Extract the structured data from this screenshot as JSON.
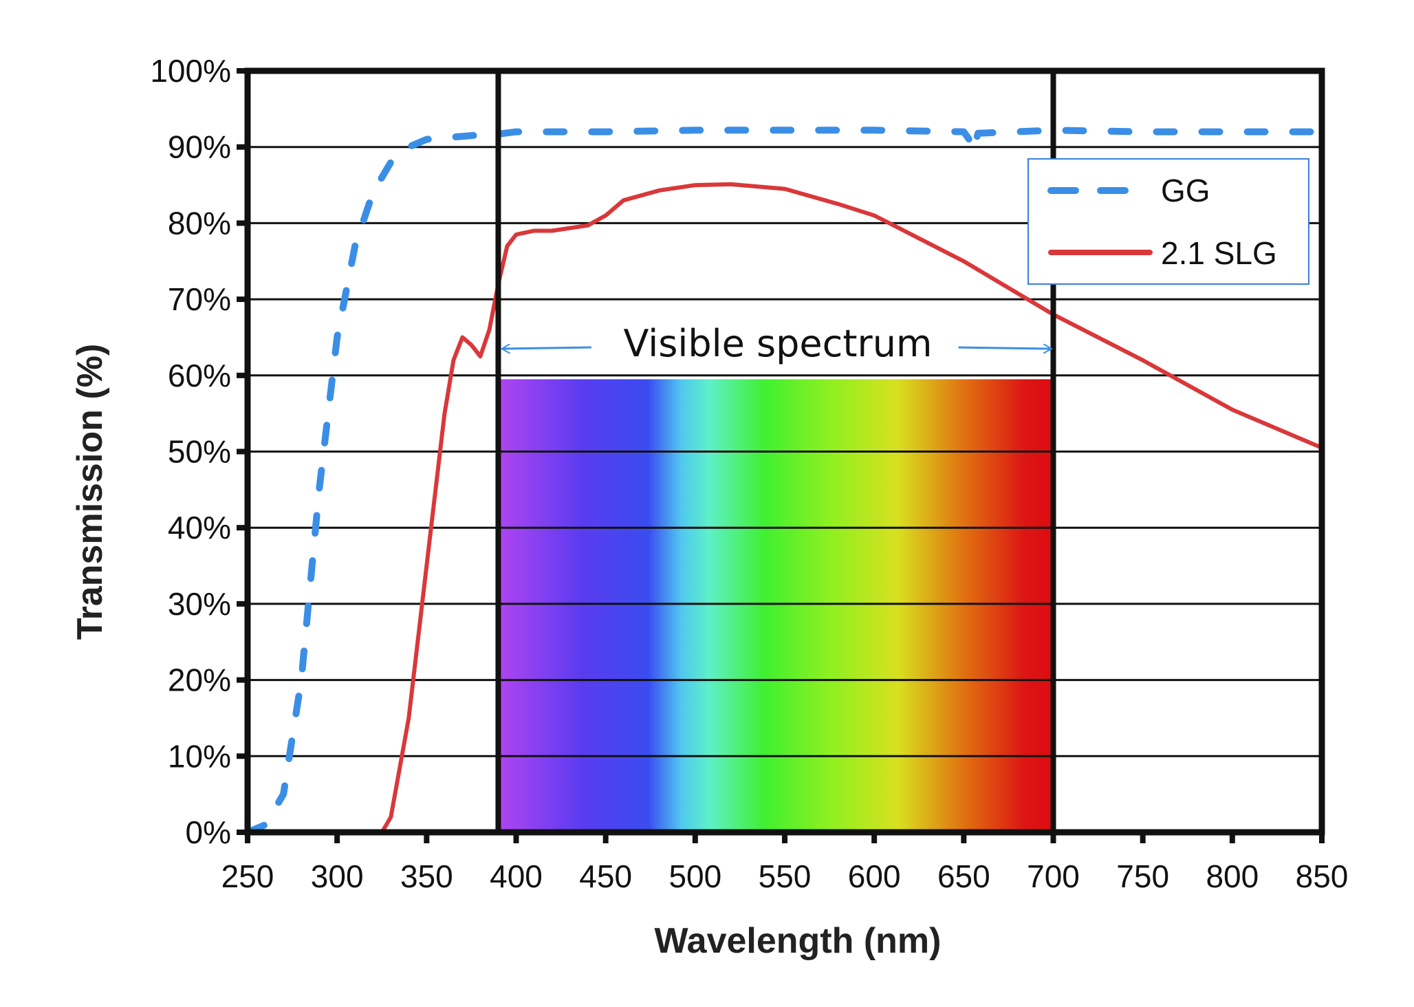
{
  "chart_data": {
    "type": "line",
    "title": "",
    "xlabel": "Wavelength (nm)",
    "ylabel": "Transmission (%)",
    "xlim": [
      250,
      850
    ],
    "ylim": [
      0,
      100
    ],
    "xticks": [
      "250",
      "300",
      "350",
      "400",
      "450",
      "500",
      "550",
      "600",
      "650",
      "700",
      "750",
      "800",
      "850"
    ],
    "yticks": [
      "0%",
      "10%",
      "20%",
      "30%",
      "40%",
      "50%",
      "60%",
      "70%",
      "80%",
      "90%",
      "100%"
    ],
    "grid": "horizontal",
    "legend_position": "top-right",
    "series": [
      {
        "name": "GG",
        "style": "dashed",
        "color": "#3a8ee6",
        "x": [
          250,
          260,
          270,
          280,
          290,
          300,
          310,
          320,
          330,
          340,
          350,
          375,
          390,
          400,
          450,
          500,
          550,
          600,
          650,
          653,
          655,
          658,
          700,
          750,
          800,
          850
        ],
        "y": [
          0,
          1,
          5,
          20,
          45,
          65,
          77,
          84,
          88,
          90,
          91,
          91.5,
          91.7,
          92,
          92,
          92.2,
          92.2,
          92.2,
          92,
          91,
          89.5,
          91.8,
          92.2,
          92,
          92,
          92
        ]
      },
      {
        "name": "2.1 SLG",
        "style": "solid",
        "color": "#d9383a",
        "x": [
          300,
          325,
          330,
          340,
          350,
          360,
          365,
          370,
          375,
          380,
          385,
          390,
          395,
          400,
          410,
          420,
          440,
          450,
          460,
          480,
          500,
          520,
          550,
          580,
          600,
          650,
          700,
          750,
          800,
          850
        ],
        "y": [
          0,
          0,
          2,
          15,
          35,
          55,
          62,
          65,
          64,
          62.5,
          66,
          72,
          77,
          78.5,
          79,
          79,
          79.7,
          81,
          83,
          84.3,
          85,
          85.1,
          84.5,
          82.5,
          81,
          75,
          68,
          62,
          55.5,
          50.5
        ]
      }
    ],
    "annotations": {
      "visible_label": "Visible spectrum",
      "visible_range": [
        390,
        700
      ],
      "spectrum_band_top": 59.5,
      "arrow_color": "#3a8ee6",
      "marker_lines_x": [
        390,
        700
      ]
    }
  }
}
